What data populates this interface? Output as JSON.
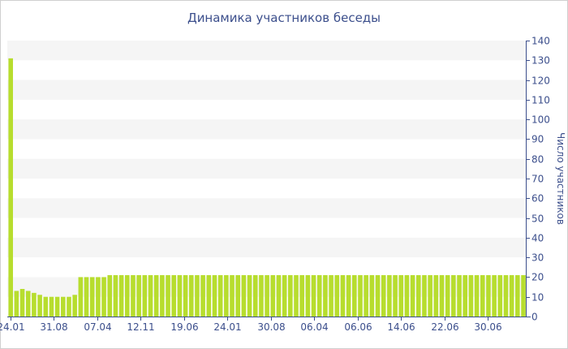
{
  "chart_data": {
    "type": "bar",
    "title": "Динамика участников беседы",
    "xlabel": "",
    "ylabel": "Число участников",
    "y_axis_side": "right",
    "ylim": [
      0,
      140
    ],
    "yticks": [
      0,
      10,
      20,
      30,
      40,
      50,
      60,
      70,
      80,
      90,
      100,
      110,
      120,
      130,
      140
    ],
    "grid": "alternating horizontal bands",
    "legend": "none",
    "bar_color": "#b7dd2e",
    "axis_color": "#3c4f8c",
    "x_tick_labels": [
      "24.01",
      "31.08",
      "07.04",
      "12.11",
      "19.06",
      "24.01",
      "30.08",
      "06.04",
      "06.06",
      "14.06",
      "22.06",
      "30.06"
    ],
    "values": [
      131,
      13,
      14,
      13,
      12,
      11,
      10,
      10,
      10,
      10,
      10,
      11,
      20,
      20,
      20,
      20,
      20,
      21,
      21,
      21,
      21,
      21,
      21,
      21,
      21,
      21,
      21,
      21,
      21,
      21,
      21,
      21,
      21,
      21,
      21,
      21,
      21,
      21,
      21,
      21,
      21,
      21,
      21,
      21,
      21,
      21,
      21,
      21,
      21,
      21,
      21,
      21,
      21,
      21,
      21,
      21,
      21,
      21,
      21,
      21,
      21,
      21,
      21,
      21,
      21,
      21,
      21,
      21,
      21,
      21,
      21,
      21,
      21,
      21,
      21,
      21,
      21,
      21,
      21,
      21,
      21,
      21,
      21,
      21,
      21,
      21,
      21,
      21,
      21
    ]
  }
}
